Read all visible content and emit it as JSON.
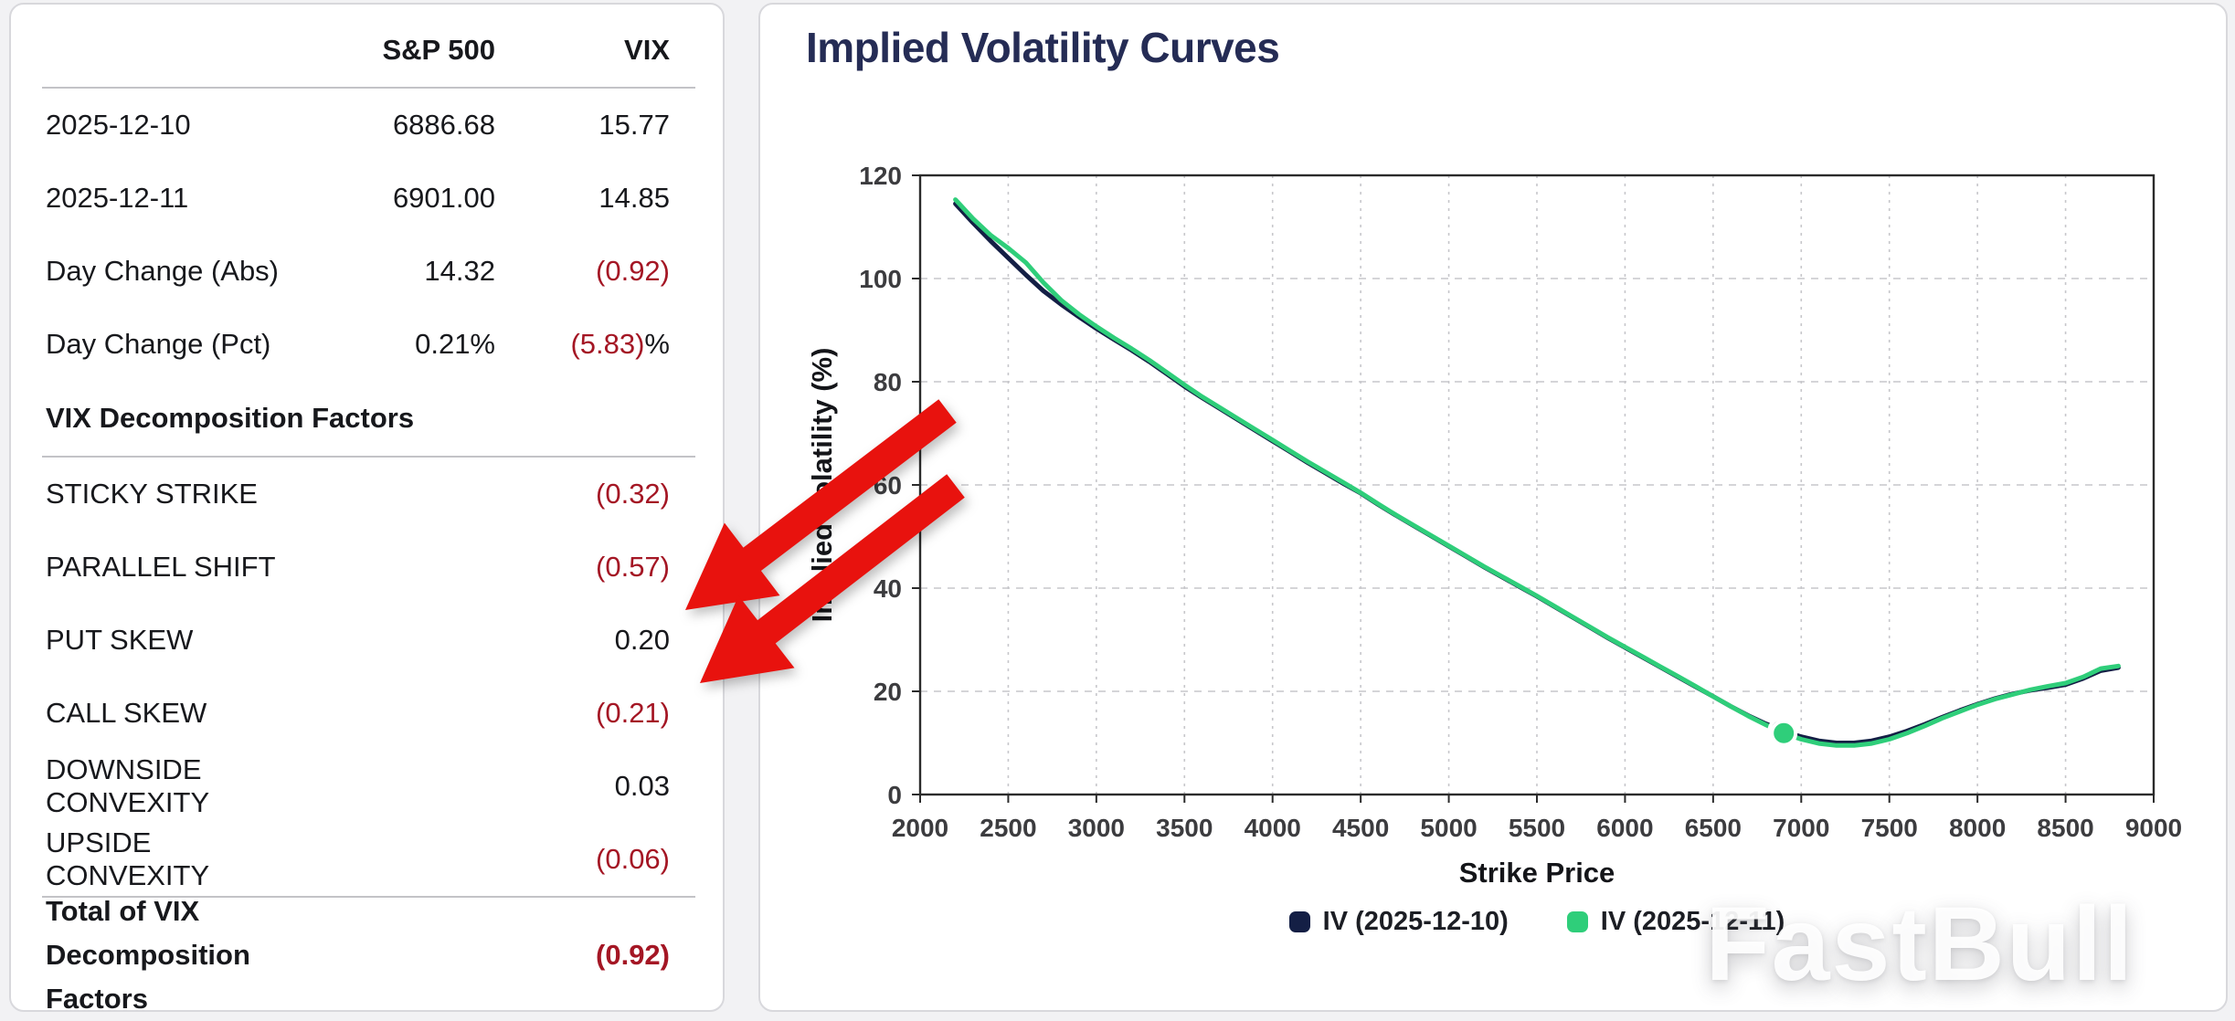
{
  "page": {
    "watermark": "FastBull"
  },
  "colors": {
    "negative_value": "#a41624",
    "text": "#17181c",
    "chart_title": "#252c55",
    "series_navy": "#141f45",
    "series_green": "#2fce7a",
    "arrow_red": "#e8120e",
    "gridline": "#c7c7cb",
    "plot_border": "#2b2b2b"
  },
  "left_panel": {
    "col_headers": [
      "S&P 500",
      "VIX"
    ],
    "rows": [
      {
        "label": "2025-12-10",
        "sp": "6886.68",
        "vix": "15.77"
      },
      {
        "label": "2025-12-11",
        "sp": "6901.00",
        "vix": "14.85"
      },
      {
        "label": "Day Change (Abs)",
        "sp": "14.32",
        "vix": "(0.92)",
        "vix_neg": true
      },
      {
        "label": "Day Change (Pct)",
        "sp": "0.21%",
        "vix": "(5.83)",
        "vix_suffix": "%",
        "vix_neg": true
      },
      {
        "label": "VIX Decomposition Factors",
        "type": "section",
        "divider_after": true
      },
      {
        "label": "STICKY STRIKE",
        "vix": "(0.32)",
        "vix_neg": true
      },
      {
        "label": "PARALLEL SHIFT",
        "vix": "(0.57)",
        "vix_neg": true
      },
      {
        "label": "PUT SKEW",
        "vix": "0.20"
      },
      {
        "label": "CALL SKEW",
        "vix": "(0.21)",
        "vix_neg": true
      },
      {
        "label": "DOWNSIDE CONVEXITY",
        "vix": "0.03"
      },
      {
        "label": "UPSIDE CONVEXITY",
        "vix": "(0.06)",
        "vix_neg": true,
        "divider_after": true
      },
      {
        "label": "Total of VIX Decomposition Factors",
        "vix": "(0.92)",
        "vix_neg": true,
        "type": "total"
      }
    ]
  },
  "chart_data": {
    "type": "line",
    "title": "Implied Volatility Curves",
    "xlabel": "Strike Price",
    "ylabel": "Implied Volatility (%)",
    "xlim": [
      2000,
      9000
    ],
    "ylim": [
      0,
      120
    ],
    "x_ticks": [
      2000,
      2500,
      3000,
      3500,
      4000,
      4500,
      5000,
      5500,
      6000,
      6500,
      7000,
      7500,
      8000,
      8500,
      9000
    ],
    "y_ticks": [
      0,
      20,
      40,
      60,
      80,
      100,
      120
    ],
    "grid": true,
    "legend_position": "bottom",
    "x": [
      2200,
      2300,
      2400,
      2500,
      2600,
      2700,
      2800,
      2900,
      3000,
      3100,
      3200,
      3300,
      3400,
      3500,
      3600,
      3700,
      3800,
      3900,
      4000,
      4100,
      4200,
      4300,
      4400,
      4500,
      4600,
      4700,
      4800,
      4900,
      5000,
      5100,
      5200,
      5300,
      5400,
      5500,
      5600,
      5700,
      5800,
      5900,
      6000,
      6100,
      6200,
      6300,
      6400,
      6500,
      6600,
      6700,
      6800,
      6900,
      7000,
      7100,
      7200,
      7300,
      7400,
      7500,
      7600,
      7700,
      7800,
      7900,
      8000,
      8100,
      8200,
      8300,
      8400,
      8500,
      8600,
      8700,
      8800
    ],
    "series": [
      {
        "name": "IV (2025-12-10)",
        "color": "#141f45",
        "values": [
          114.5,
          110.8,
          107.3,
          104.0,
          100.7,
          97.6,
          95.0,
          92.6,
          90.3,
          88.2,
          86.1,
          83.9,
          81.5,
          79.1,
          76.9,
          74.8,
          72.7,
          70.6,
          68.5,
          66.4,
          64.3,
          62.3,
          60.3,
          58.4,
          56.2,
          54.1,
          52.1,
          50.1,
          48.1,
          46.1,
          44.1,
          42.2,
          40.3,
          38.4,
          36.4,
          34.4,
          32.4,
          30.4,
          28.5,
          26.6,
          24.7,
          22.8,
          20.9,
          19.0,
          17.1,
          15.3,
          13.7,
          12.3,
          11.2,
          10.4,
          10.0,
          10.0,
          10.4,
          11.2,
          12.3,
          13.6,
          15.0,
          16.3,
          17.5,
          18.6,
          19.5,
          20.2,
          20.7,
          21.3,
          22.5,
          24.0,
          24.6
        ],
        "marker_point": {
          "x": 6886.68,
          "y": 12.4
        }
      },
      {
        "name": "IV (2025-12-11)",
        "color": "#2fce7a",
        "values": [
          115.3,
          111.6,
          108.4,
          105.9,
          103.1,
          99.2,
          95.8,
          93.1,
          90.7,
          88.5,
          86.4,
          84.2,
          81.8,
          79.4,
          77.1,
          75.0,
          72.9,
          70.8,
          68.7,
          66.6,
          64.5,
          62.5,
          60.5,
          58.5,
          56.3,
          54.2,
          52.2,
          50.2,
          48.2,
          46.2,
          44.2,
          42.3,
          40.4,
          38.5,
          36.5,
          34.5,
          32.5,
          30.5,
          28.6,
          26.7,
          24.8,
          22.9,
          21.0,
          19.0,
          17.1,
          15.2,
          13.5,
          11.9,
          10.7,
          9.9,
          9.5,
          9.5,
          9.9,
          10.7,
          11.9,
          13.3,
          14.8,
          16.1,
          17.4,
          18.5,
          19.4,
          20.3,
          21.0,
          21.6,
          22.8,
          24.4,
          24.9
        ],
        "marker_point": {
          "x": 6901,
          "y": 11.9
        }
      }
    ]
  }
}
